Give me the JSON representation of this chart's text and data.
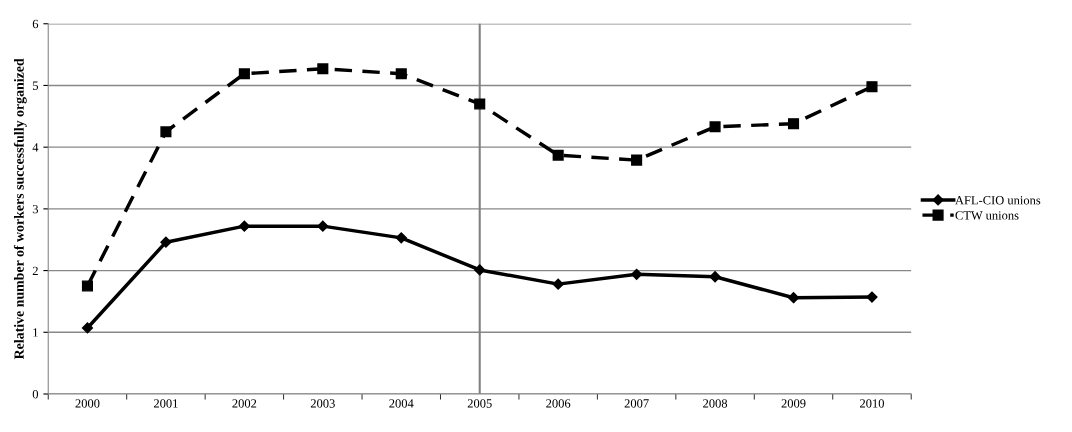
{
  "chart_data": {
    "type": "line",
    "ylabel": "Relative number of workers successfully organized",
    "categories": [
      "2000",
      "2001",
      "2002",
      "2003",
      "2004",
      "2005",
      "2006",
      "2007",
      "2008",
      "2009",
      "2010"
    ],
    "series": [
      {
        "name": "AFL-CIO unions",
        "color": "#000000",
        "marker": "diamond",
        "line_style": "solid",
        "values": [
          1.07,
          2.46,
          2.72,
          2.72,
          2.53,
          2.01,
          1.78,
          1.94,
          1.9,
          1.56,
          1.57
        ]
      },
      {
        "name": "CTW unions",
        "color": "#000000",
        "marker": "square",
        "line_style": "dashed",
        "values": [
          1.75,
          4.25,
          5.19,
          5.27,
          5.19,
          4.7,
          3.87,
          3.79,
          4.33,
          4.38,
          4.98
        ]
      }
    ],
    "ylim": [
      0,
      6
    ],
    "yticks": [
      0,
      1,
      2,
      3,
      4,
      5,
      6
    ],
    "grid": "y",
    "legend": "right",
    "ref_lines": [
      {
        "axis": "x",
        "value": "2005",
        "color": "#808080"
      }
    ]
  }
}
